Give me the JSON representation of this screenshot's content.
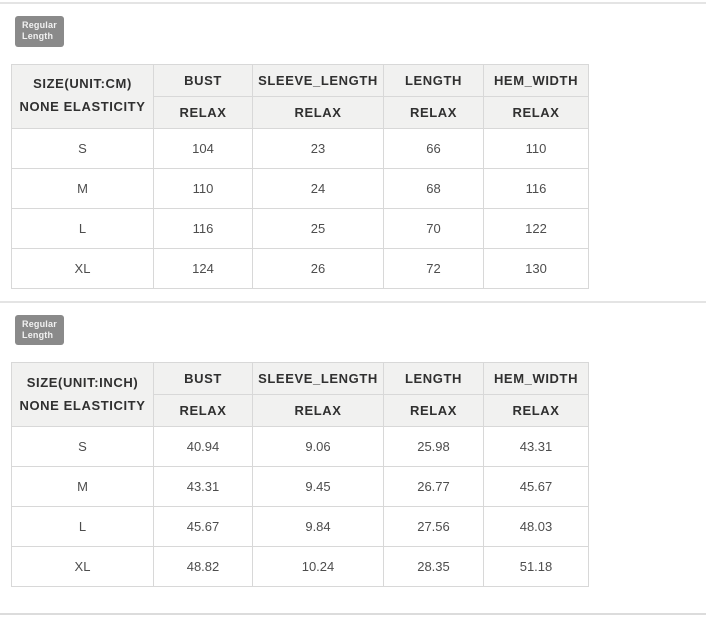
{
  "colors": {
    "badge_bg": "#8a8a8a",
    "badge_text": "#f2f2f2",
    "header_bg": "#f1f1f0",
    "table_border": "#d8d8d8",
    "divider": "#e4e4e4",
    "header_text": "#303030",
    "cell_text": "#4d4d4d"
  },
  "sections": [
    {
      "badge": {
        "line1": "Regular",
        "line2": "Length"
      },
      "table": {
        "corner_header": {
          "line1": "SIZE(UNIT:CM)",
          "line2": "NONE ELASTICITY"
        },
        "columns": [
          "BUST",
          "SLEEVE_LENGTH",
          "LENGTH",
          "HEM_WIDTH"
        ],
        "sub_header": "RELAX",
        "rows": [
          {
            "size": "S",
            "values": [
              "104",
              "23",
              "66",
              "110"
            ]
          },
          {
            "size": "M",
            "values": [
              "110",
              "24",
              "68",
              "116"
            ]
          },
          {
            "size": "L",
            "values": [
              "116",
              "25",
              "70",
              "122"
            ]
          },
          {
            "size": "XL",
            "values": [
              "124",
              "26",
              "72",
              "130"
            ]
          }
        ]
      }
    },
    {
      "badge": {
        "line1": "Regular",
        "line2": "Length"
      },
      "table": {
        "corner_header": {
          "line1": "SIZE(UNIT:INCH)",
          "line2": "NONE ELASTICITY"
        },
        "columns": [
          "BUST",
          "SLEEVE_LENGTH",
          "LENGTH",
          "HEM_WIDTH"
        ],
        "sub_header": "RELAX",
        "rows": [
          {
            "size": "S",
            "values": [
              "40.94",
              "9.06",
              "25.98",
              "43.31"
            ]
          },
          {
            "size": "M",
            "values": [
              "43.31",
              "9.45",
              "26.77",
              "45.67"
            ]
          },
          {
            "size": "L",
            "values": [
              "45.67",
              "9.84",
              "27.56",
              "48.03"
            ]
          },
          {
            "size": "XL",
            "values": [
              "48.82",
              "10.24",
              "28.35",
              "51.18"
            ]
          }
        ]
      }
    }
  ]
}
